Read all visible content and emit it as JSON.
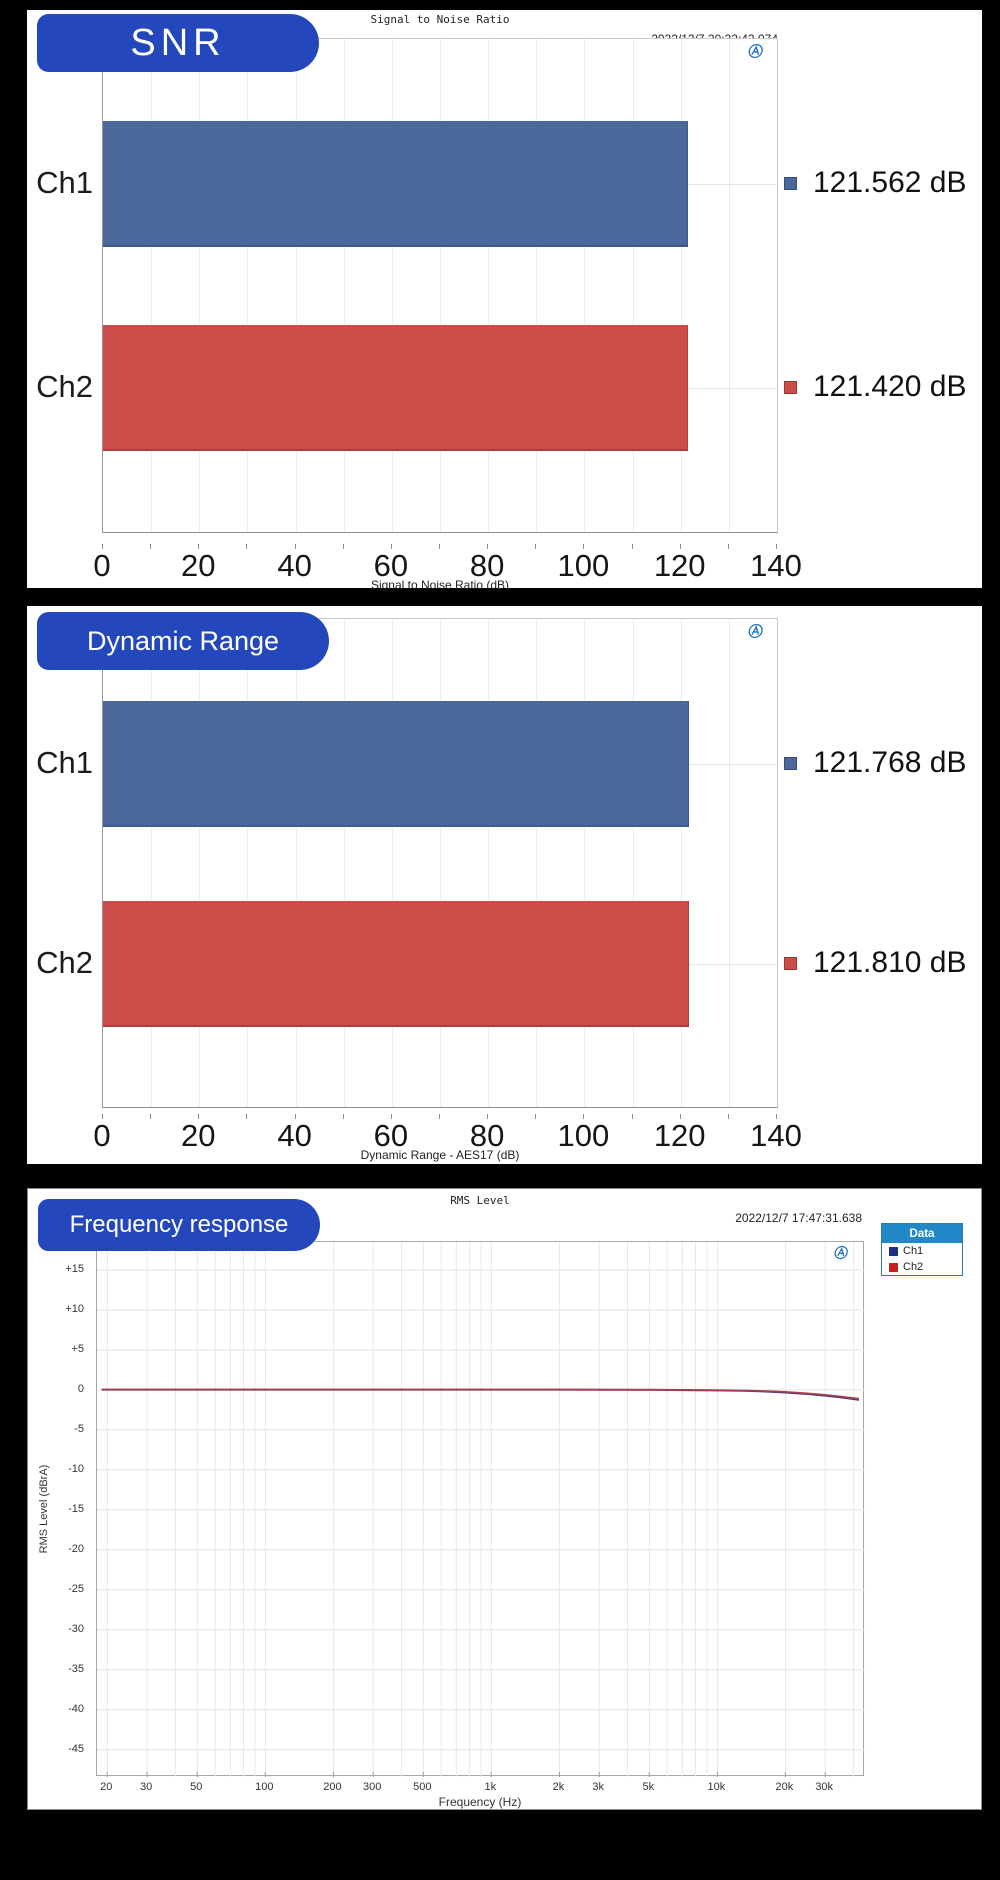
{
  "colors": {
    "badge_blue": "#2448bb",
    "bar_blue": "#4b689d",
    "bar_red": "#cc4c49",
    "legend_header_blue": "#2289c8",
    "ap_logo_blue": "#1b6ec2"
  },
  "panels": {
    "snr": {
      "badge": "SNR",
      "title": "Signal to Noise Ratio",
      "timestamp": "2022/12/7 20:32:43.074",
      "axis_caption": "Signal to Noise Ratio (dB)"
    },
    "dynamic_range": {
      "badge": "Dynamic Range",
      "axis_caption": "Dynamic Range - AES17 (dB)"
    },
    "frequency_response": {
      "badge": "Frequency response",
      "title": "RMS Level",
      "timestamp": "2022/12/7 17:47:31.638",
      "xlabel": "Frequency (Hz)",
      "ylabel": "RMS Level (dBrA)"
    }
  },
  "chart_data": [
    {
      "id": "snr",
      "type": "bar",
      "orientation": "horizontal",
      "title": "Signal to Noise Ratio",
      "timestamp": "2022/12/7 20:32:43.074",
      "categories": [
        "Ch1",
        "Ch2"
      ],
      "values": [
        121.562,
        121.42
      ],
      "value_labels": [
        "121.562 dB",
        "121.420 dB"
      ],
      "bar_colors": [
        "#4b689d",
        "#cc4c49"
      ],
      "xlabel": "Signal to Noise Ratio (dB)",
      "xlim": [
        0,
        140
      ],
      "xticks": [
        0,
        20,
        40,
        60,
        80,
        100,
        120,
        140
      ],
      "grid_step": 10,
      "grid": true,
      "legend_position": "right-of-bars"
    },
    {
      "id": "dynamic-range",
      "type": "bar",
      "orientation": "horizontal",
      "categories": [
        "Ch1",
        "Ch2"
      ],
      "values": [
        121.768,
        121.81
      ],
      "value_labels": [
        "121.768 dB",
        "121.810 dB"
      ],
      "bar_colors": [
        "#4b689d",
        "#cc4c49"
      ],
      "xlabel": "Dynamic Range - AES17 (dB)",
      "xlim": [
        0,
        140
      ],
      "xticks": [
        0,
        20,
        40,
        60,
        80,
        100,
        120,
        140
      ],
      "grid_step": 10,
      "grid": true,
      "legend_position": "right-of-bars"
    },
    {
      "id": "rms-level",
      "type": "line",
      "title": "RMS Level",
      "timestamp": "2022/12/7 17:47:31.638",
      "xlabel": "Frequency (Hz)",
      "ylabel": "RMS Level (dBrA)",
      "xscale": "log",
      "xlim": [
        18,
        45000
      ],
      "ylim": [
        -48.4,
        18.5
      ],
      "grid": true,
      "yticks": [
        {
          "v": 15,
          "l": "+15"
        },
        {
          "v": 10,
          "l": "+10"
        },
        {
          "v": 5,
          "l": "+5"
        },
        {
          "v": 0,
          "l": "0"
        },
        {
          "v": -5,
          "l": "-5"
        },
        {
          "v": -10,
          "l": "-10"
        },
        {
          "v": -15,
          "l": "-15"
        },
        {
          "v": -20,
          "l": "-20"
        },
        {
          "v": -25,
          "l": "-25"
        },
        {
          "v": -30,
          "l": "-30"
        },
        {
          "v": -35,
          "l": "-35"
        },
        {
          "v": -40,
          "l": "-40"
        },
        {
          "v": -45,
          "l": "-45"
        }
      ],
      "xticks": [
        {
          "v": 20,
          "l": "20"
        },
        {
          "v": 30,
          "l": "30"
        },
        {
          "v": 50,
          "l": "50"
        },
        {
          "v": 100,
          "l": "100"
        },
        {
          "v": 200,
          "l": "200"
        },
        {
          "v": 300,
          "l": "300"
        },
        {
          "v": 500,
          "l": "500"
        },
        {
          "v": 1000,
          "l": "1k"
        },
        {
          "v": 2000,
          "l": "2k"
        },
        {
          "v": 3000,
          "l": "3k"
        },
        {
          "v": 5000,
          "l": "5k"
        },
        {
          "v": 10000,
          "l": "10k"
        },
        {
          "v": 20000,
          "l": "20k"
        },
        {
          "v": 30000,
          "l": "30k"
        }
      ],
      "legend": {
        "header": "Data",
        "position": "outside-top-right",
        "entries": [
          {
            "label": "Ch1",
            "color": "#1c2f86"
          },
          {
            "label": "Ch2",
            "color": "#c32222"
          }
        ]
      },
      "series": [
        {
          "name": "Ch1",
          "color": "#2c3f8f",
          "x": [
            19,
            20,
            30,
            50,
            100,
            200,
            500,
            1000,
            2000,
            3000,
            5000,
            7000,
            10000,
            13000,
            16000,
            20000,
            25000,
            30000,
            35000,
            40000,
            42000
          ],
          "y": [
            0.03,
            0.03,
            0.03,
            0.03,
            0.03,
            0.03,
            0.03,
            0.03,
            0.03,
            0.02,
            0.0,
            -0.03,
            -0.07,
            -0.12,
            -0.2,
            -0.33,
            -0.52,
            -0.72,
            -0.93,
            -1.15,
            -1.25
          ]
        },
        {
          "name": "Ch2",
          "color": "#a93f46",
          "x": [
            19,
            20,
            30,
            50,
            100,
            200,
            500,
            1000,
            2000,
            3000,
            5000,
            7000,
            10000,
            13000,
            16000,
            20000,
            25000,
            30000,
            35000,
            40000,
            42000
          ],
          "y": [
            0.05,
            0.05,
            0.05,
            0.05,
            0.05,
            0.05,
            0.05,
            0.05,
            0.05,
            0.04,
            0.03,
            0.01,
            -0.02,
            -0.07,
            -0.13,
            -0.25,
            -0.43,
            -0.62,
            -0.82,
            -1.02,
            -1.1
          ]
        }
      ]
    }
  ]
}
